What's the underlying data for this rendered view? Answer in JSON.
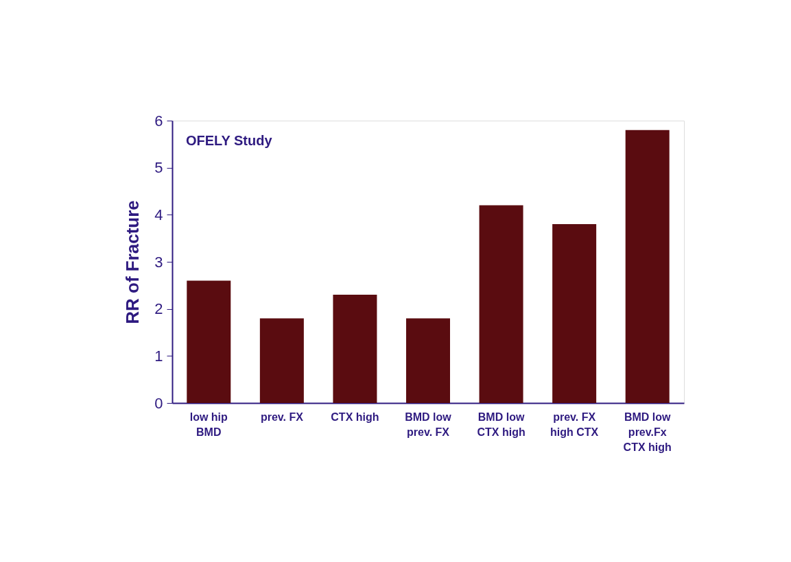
{
  "chart_data": {
    "type": "bar",
    "ylabel": "RR of Fracture",
    "categories": [
      "low hip\nBMD",
      "prev. FX",
      "CTX high",
      "BMD low\nprev. FX",
      "BMD low\nCTX high",
      "prev. FX\nhigh CTX",
      "BMD low\nprev.Fx\nCTX high"
    ],
    "values": [
      2.6,
      1.8,
      2.3,
      1.8,
      4.2,
      3.8,
      5.8
    ],
    "color": "#5a0c10",
    "ylim": [
      0,
      6
    ],
    "yticks": [
      0,
      1,
      2,
      3,
      4,
      5,
      6
    ],
    "grid": false,
    "annotations": [
      "OFELY Study"
    ]
  }
}
